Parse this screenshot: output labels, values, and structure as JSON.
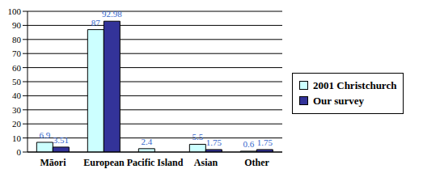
{
  "chart_data": {
    "type": "bar",
    "categories": [
      "Māori",
      "European",
      "Pacific Island",
      "Asian",
      "Other"
    ],
    "series": [
      {
        "name": "2001 Christchurch",
        "color": "#ccffff",
        "values": [
          6.9,
          87,
          2.4,
          5.5,
          0.6
        ]
      },
      {
        "name": "Our survey",
        "color": "#333399",
        "values": [
          3.51,
          92.98,
          0,
          1.75,
          1.75
        ]
      }
    ],
    "ylim": [
      0,
      100
    ],
    "yticks": [
      0,
      10,
      20,
      30,
      40,
      50,
      60,
      70,
      80,
      90,
      100
    ],
    "grid": true,
    "legend": "right",
    "data_labels": true
  }
}
